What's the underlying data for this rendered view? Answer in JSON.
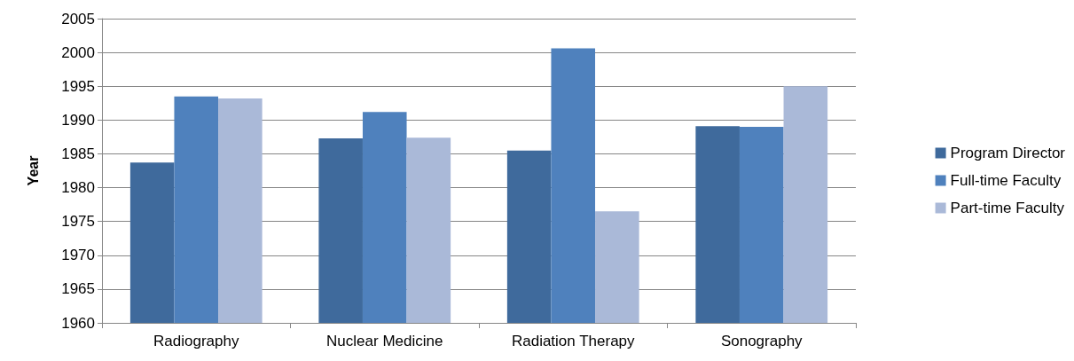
{
  "chart_data": {
    "type": "bar",
    "ylabel": "Year",
    "categories": [
      "Radiography",
      "Nuclear Medicine",
      "Radiation Therapy",
      "Sonography"
    ],
    "series": [
      {
        "name": "Program Director",
        "color": "#3f6a9c",
        "values": [
          1983.7,
          1987.3,
          1985.5,
          1989.1
        ]
      },
      {
        "name": "Full-time Faculty",
        "color": "#4f81bd",
        "values": [
          1993.5,
          1991.2,
          2000.6,
          1989.0
        ]
      },
      {
        "name": "Part-time Faculty",
        "color": "#aab9d8",
        "values": [
          1993.2,
          1987.4,
          1976.5,
          1995.0
        ]
      }
    ],
    "ylim": [
      1960,
      2005
    ],
    "yticks": [
      1960,
      1965,
      1970,
      1975,
      1980,
      1985,
      1990,
      1995,
      2000,
      2005
    ],
    "grid": "y",
    "legend": "right"
  }
}
